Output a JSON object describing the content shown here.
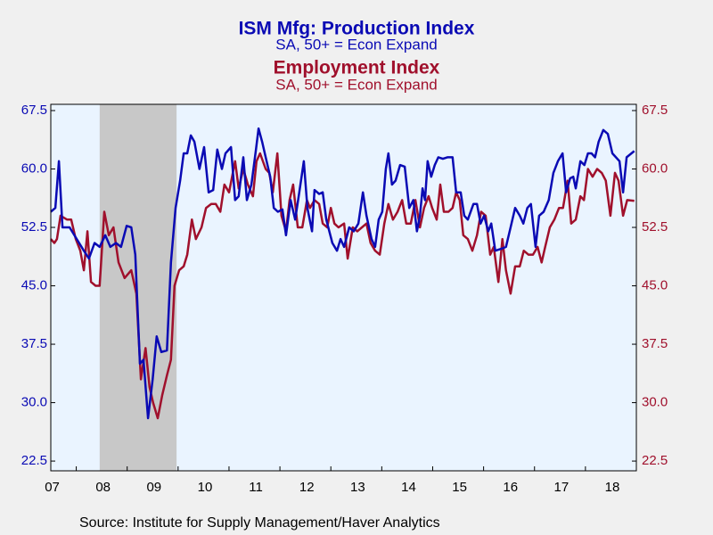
{
  "chart_data": {
    "type": "line",
    "source": "Source:  Institute for Supply Management/Haver Analytics",
    "xlim": [
      2007,
      2018.5
    ],
    "xticks": [
      {
        "value": 2007.5,
        "label": "07"
      },
      {
        "value": 2008.5,
        "label": "08"
      },
      {
        "value": 2009.5,
        "label": "09"
      },
      {
        "value": 2010.5,
        "label": "10"
      },
      {
        "value": 2011.5,
        "label": "11"
      },
      {
        "value": 2012.5,
        "label": "12"
      },
      {
        "value": 2013.5,
        "label": "13"
      },
      {
        "value": 2014.5,
        "label": "14"
      },
      {
        "value": 2015.5,
        "label": "15"
      },
      {
        "value": 2016.5,
        "label": "16"
      },
      {
        "value": 2017.5,
        "label": "17"
      },
      {
        "value": 2018.5,
        "label": "18"
      }
    ],
    "ylim": [
      21.25,
      68.3
    ],
    "yticks": [
      {
        "value": 22.5,
        "label": "22.5"
      },
      {
        "value": 30,
        "label": "30.0"
      },
      {
        "value": 37.5,
        "label": "37.5"
      },
      {
        "value": 45,
        "label": "45.0"
      },
      {
        "value": 52.5,
        "label": "52.5"
      },
      {
        "value": 60,
        "label": "60.0"
      },
      {
        "value": 67.5,
        "label": "67.5"
      }
    ],
    "y2lim": [
      21.25,
      68.3
    ],
    "y2ticks": [
      {
        "value": 22.5,
        "label": "22.5"
      },
      {
        "value": 30,
        "label": "30.0"
      },
      {
        "value": 37.5,
        "label": "37.5"
      },
      {
        "value": 45,
        "label": "45.0"
      },
      {
        "value": 52.5,
        "label": "52.5"
      },
      {
        "value": 60,
        "label": "60.0"
      },
      {
        "value": 67.5,
        "label": "67.5"
      }
    ],
    "recession": [
      2007.96,
      2009.47
    ],
    "recession_color": "#c8c8c8",
    "background": "#eaf4ff",
    "series": [
      {
        "name": "ISM Mfg: Production Index",
        "note": "SA, 50+ = Econ Expand",
        "color": "#0a0ab4",
        "axis": "y",
        "x": [
          2007.0,
          2007.09,
          2007.16,
          2007.23,
          2007.37,
          2007.51,
          2007.65,
          2007.75,
          2007.86,
          2007.96,
          2008.07,
          2008.17,
          2008.28,
          2008.38,
          2008.49,
          2008.58,
          2008.66,
          2008.75,
          2008.82,
          2008.91,
          2009.0,
          2009.08,
          2009.17,
          2009.28,
          2009.36,
          2009.45,
          2009.54,
          2009.61,
          2009.68,
          2009.75,
          2009.82,
          2009.92,
          2010.01,
          2010.1,
          2010.19,
          2010.27,
          2010.36,
          2010.43,
          2010.54,
          2010.62,
          2010.69,
          2010.78,
          2010.85,
          2010.94,
          2011.03,
          2011.08,
          2011.15,
          2011.22,
          2011.31,
          2011.38,
          2011.46,
          2011.55,
          2011.62,
          2011.71,
          2011.8,
          2011.88,
          2011.97,
          2012.04,
          2012.13,
          2012.18,
          2012.27,
          2012.34,
          2012.41,
          2012.53,
          2012.62,
          2012.69,
          2012.76,
          2012.86,
          2012.95,
          2013.04,
          2013.13,
          2013.2,
          2013.3,
          2013.37,
          2013.44,
          2013.51,
          2013.58,
          2013.63,
          2013.7,
          2013.77,
          2013.86,
          2013.95,
          2014.04,
          2014.12,
          2014.19,
          2014.25,
          2014.3,
          2014.35,
          2014.4,
          2014.47,
          2014.54,
          2014.61,
          2014.7,
          2014.79,
          2014.89,
          2014.96,
          2015.05,
          2015.12,
          2015.19,
          2015.3,
          2015.37,
          2015.44,
          2015.51,
          2015.59,
          2015.65,
          2015.73,
          2015.87,
          2015.94,
          2016.03,
          2016.12,
          2016.21,
          2016.28,
          2016.36,
          2016.43,
          2016.52,
          2016.59,
          2016.68,
          2016.78,
          2016.87,
          2016.96,
          2017.05,
          2017.12,
          2017.2,
          2017.26,
          2017.31,
          2017.4,
          2017.48,
          2017.55,
          2017.62,
          2017.69,
          2017.76,
          2017.85,
          2017.94,
          2018.03,
          2018.17,
          2018.24,
          2018.31,
          2018.46
        ],
        "values": [
          54.5,
          55,
          61,
          52.5,
          52.5,
          51,
          49.5,
          48.5,
          50.5,
          50,
          51.5,
          50,
          50.5,
          50,
          52.7,
          52.5,
          49,
          35,
          35.5,
          28,
          33,
          38.5,
          36.5,
          36.7,
          48,
          55,
          58.5,
          62,
          62,
          64.3,
          63.5,
          60,
          62.8,
          57,
          57.3,
          62.5,
          60,
          62,
          62.8,
          56,
          56.5,
          61.5,
          56,
          58,
          62.5,
          65.2,
          63.5,
          61.5,
          59,
          55,
          54.5,
          54.8,
          51.5,
          56,
          53.5,
          57,
          61,
          55,
          52,
          57.3,
          56.8,
          57,
          53.5,
          50.5,
          49.5,
          51,
          50,
          52.5,
          52,
          53,
          57,
          54,
          51,
          50,
          53.5,
          54.5,
          60,
          62,
          58,
          58.5,
          60.5,
          60.3,
          55,
          56,
          52,
          54,
          57.5,
          56,
          61,
          59,
          60.5,
          61.5,
          61.3,
          61.5,
          61.5,
          57,
          57,
          54,
          53.5,
          55.5,
          55.5,
          53,
          54,
          52,
          53,
          49.5,
          49.8,
          50,
          52.5,
          55,
          54,
          53,
          55,
          55.5,
          50,
          54,
          54.5,
          56,
          59.5,
          61,
          62,
          57,
          58.8,
          59,
          57.5,
          61,
          60.5,
          62,
          62,
          61.5,
          63.5,
          65,
          64.5,
          62,
          61,
          57,
          61.5,
          62.3
        ]
      },
      {
        "name": "Employment Index",
        "note": "SA, 50+ = Econ Expand",
        "color": "#a0102c",
        "axis": "y2",
        "x": [
          2007.0,
          2007.07,
          2007.12,
          2007.19,
          2007.32,
          2007.4,
          2007.49,
          2007.58,
          2007.65,
          2007.72,
          2007.79,
          2007.88,
          2007.96,
          2008.05,
          2008.14,
          2008.23,
          2008.33,
          2008.45,
          2008.58,
          2008.68,
          2008.77,
          2008.86,
          2008.94,
          2009.01,
          2009.1,
          2009.19,
          2009.28,
          2009.36,
          2009.43,
          2009.52,
          2009.61,
          2009.68,
          2009.77,
          2009.85,
          2009.96,
          2010.05,
          2010.15,
          2010.24,
          2010.33,
          2010.41,
          2010.5,
          2010.62,
          2010.69,
          2010.78,
          2010.87,
          2010.97,
          2011.04,
          2011.11,
          2011.22,
          2011.29,
          2011.36,
          2011.45,
          2011.53,
          2011.62,
          2011.69,
          2011.76,
          2011.85,
          2011.94,
          2012.03,
          2012.09,
          2012.18,
          2012.27,
          2012.34,
          2012.43,
          2012.5,
          2012.57,
          2012.65,
          2012.76,
          2012.83,
          2012.93,
          2013.02,
          2013.11,
          2013.2,
          2013.28,
          2013.37,
          2013.46,
          2013.55,
          2013.63,
          2013.72,
          2013.81,
          2013.9,
          2013.98,
          2014.07,
          2014.16,
          2014.25,
          2014.33,
          2014.42,
          2014.49,
          2014.58,
          2014.65,
          2014.72,
          2014.81,
          2014.89,
          2014.96,
          2015.03,
          2015.1,
          2015.19,
          2015.28,
          2015.37,
          2015.45,
          2015.54,
          2015.63,
          2015.7,
          2015.79,
          2015.87,
          2015.94,
          2016.03,
          2016.12,
          2016.21,
          2016.29,
          2016.38,
          2016.47,
          2016.56,
          2016.64,
          2016.71,
          2016.8,
          2016.89,
          2016.98,
          2017.06,
          2017.15,
          2017.22,
          2017.31,
          2017.4,
          2017.47,
          2017.55,
          2017.64,
          2017.73,
          2017.82,
          2017.9,
          2017.99,
          2018.08,
          2018.15,
          2018.24,
          2018.32,
          2018.46
        ],
        "values": [
          51,
          50.5,
          51,
          54,
          53.5,
          53.5,
          51,
          49.5,
          47,
          52,
          45.5,
          45,
          45,
          54.5,
          51.5,
          52.5,
          48,
          46,
          47,
          44,
          33,
          37,
          32,
          30,
          28,
          31,
          33.5,
          35.5,
          45,
          47,
          47.5,
          49,
          53.5,
          51,
          52.5,
          55,
          55.5,
          55.5,
          54.5,
          58,
          57,
          61,
          57.5,
          60,
          58,
          56.5,
          61,
          62,
          60,
          59.5,
          57,
          62,
          54,
          52,
          56,
          58,
          52.5,
          52.5,
          56,
          55,
          56,
          55.5,
          53,
          52.5,
          55,
          53,
          52.5,
          53,
          48.5,
          52.5,
          52,
          52.5,
          53,
          50.5,
          49.5,
          49,
          53,
          55.5,
          53.5,
          54.5,
          56,
          53,
          53,
          56,
          52.5,
          55,
          56.5,
          55,
          53.5,
          58,
          54.5,
          54.5,
          55,
          57,
          56,
          51.5,
          51,
          49.5,
          51.5,
          54.5,
          54,
          49,
          50,
          45.5,
          51,
          47,
          44,
          47.5,
          47.5,
          49.5,
          49,
          49,
          50,
          48,
          50,
          52.5,
          53.5,
          55,
          55,
          58.5,
          53,
          53.5,
          56.5,
          56,
          60,
          59,
          60,
          59.5,
          58.5,
          54,
          59.5,
          58.5,
          54,
          56,
          55.9
        ]
      }
    ]
  }
}
